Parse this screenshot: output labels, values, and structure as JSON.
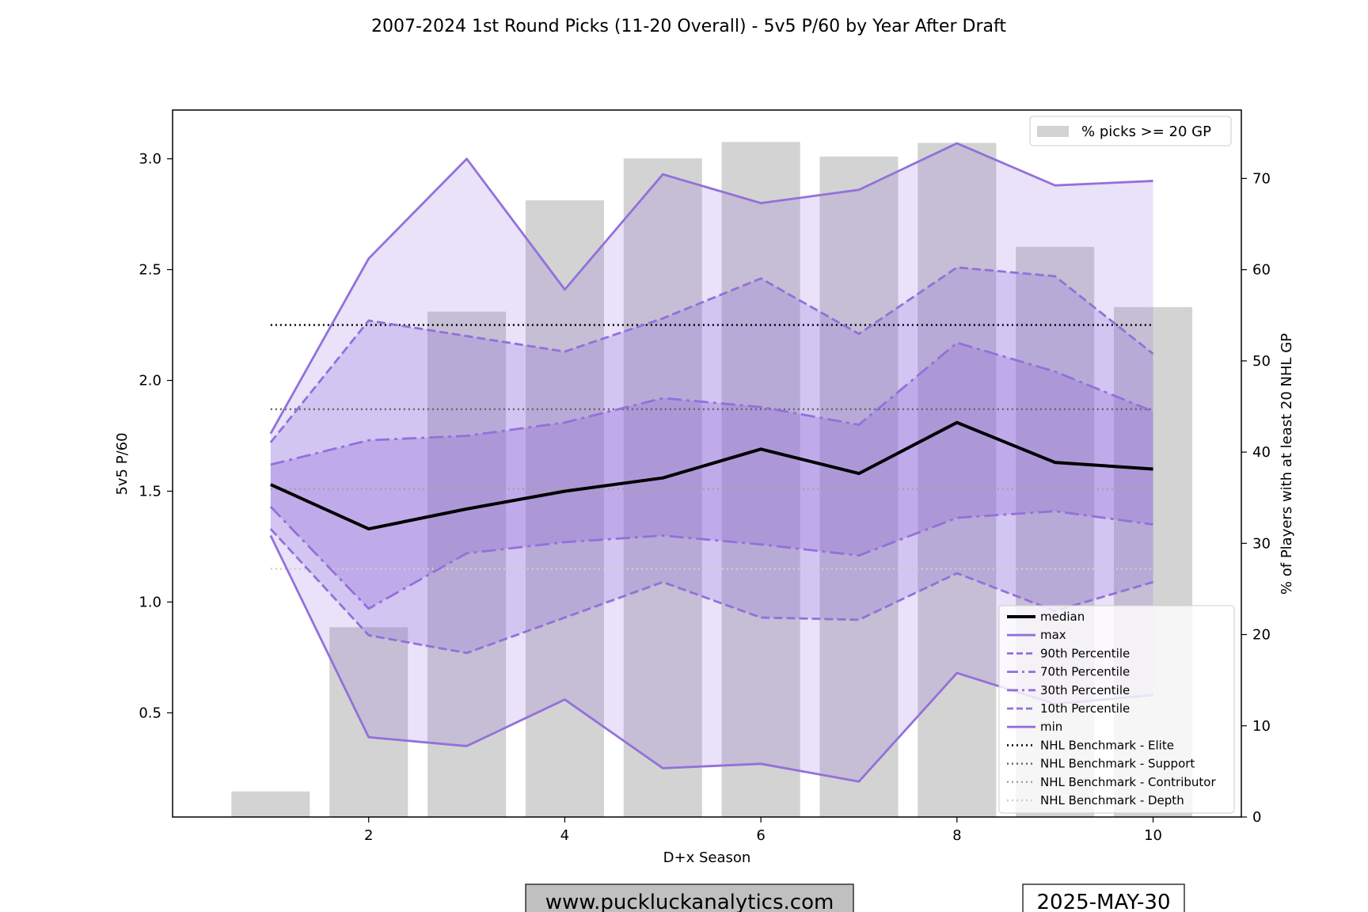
{
  "chart_data": {
    "type": "line",
    "title": "2007-2024 1st Round Picks (11-20 Overall) - 5v5 P/60 by Year After Draft",
    "xlabel": "D+x Season",
    "ylabel": "5v5 P/60",
    "ylabel_right": "% of Players with at least 20 NHL GP",
    "xlim": [
      0.0,
      10.9
    ],
    "ylim": [
      0.03,
      3.22
    ],
    "y2lim": [
      0,
      77.5
    ],
    "x_ticks": [
      2,
      4,
      6,
      8,
      10
    ],
    "y_ticks": [
      0.5,
      1.0,
      1.5,
      2.0,
      2.5,
      3.0
    ],
    "y2_ticks": [
      0,
      10,
      20,
      30,
      40,
      50,
      60,
      70
    ],
    "x": [
      1,
      2,
      3,
      4,
      5,
      6,
      7,
      8,
      9,
      10
    ],
    "bars": {
      "name": "% picks >= 20 GP",
      "color": "#d3d3d3",
      "values": [
        2.8,
        20.8,
        55.4,
        67.6,
        72.2,
        74.0,
        72.4,
        73.9,
        62.5,
        55.9
      ]
    },
    "series": [
      {
        "name": "median",
        "color": "#000000",
        "style": "solid",
        "width": 4,
        "values": [
          1.53,
          1.33,
          1.42,
          1.5,
          1.56,
          1.69,
          1.58,
          1.81,
          1.63,
          1.6
        ]
      },
      {
        "name": "max",
        "color": "#9370db",
        "style": "solid",
        "width": 2.8,
        "values": [
          1.76,
          2.55,
          3.0,
          2.41,
          2.93,
          2.8,
          2.86,
          3.07,
          2.88,
          2.9
        ]
      },
      {
        "name": "90th Percentile",
        "color": "#9370db",
        "style": "dashed",
        "width": 2.8,
        "values": [
          1.72,
          2.27,
          2.2,
          2.13,
          2.28,
          2.46,
          2.21,
          2.51,
          2.47,
          2.12
        ]
      },
      {
        "name": "70th Percentile",
        "color": "#9370db",
        "style": "dashdot",
        "width": 2.8,
        "values": [
          1.62,
          1.73,
          1.75,
          1.81,
          1.92,
          1.88,
          1.8,
          2.17,
          2.04,
          1.86
        ]
      },
      {
        "name": "30th Percentile",
        "color": "#9370db",
        "style": "dashdot",
        "width": 2.8,
        "values": [
          1.43,
          0.97,
          1.22,
          1.27,
          1.3,
          1.26,
          1.21,
          1.38,
          1.41,
          1.35
        ]
      },
      {
        "name": "10th Percentile",
        "color": "#9370db",
        "style": "dashed",
        "width": 2.8,
        "values": [
          1.33,
          0.85,
          0.77,
          0.93,
          1.09,
          0.93,
          0.92,
          1.13,
          0.96,
          1.09
        ]
      },
      {
        "name": "min",
        "color": "#9370db",
        "style": "solid",
        "width": 2.8,
        "values": [
          1.3,
          0.39,
          0.35,
          0.56,
          0.25,
          0.27,
          0.19,
          0.68,
          0.54,
          0.58
        ]
      }
    ],
    "bands": [
      {
        "lower": "min",
        "upper": "max",
        "color": "#9370db",
        "opacity": 0.2
      },
      {
        "lower": "10th Percentile",
        "upper": "90th Percentile",
        "color": "#9370db",
        "opacity": 0.25
      },
      {
        "lower": "30th Percentile",
        "upper": "70th Percentile",
        "color": "#9370db",
        "opacity": 0.3
      }
    ],
    "benchmarks": [
      {
        "name": "NHL Benchmark - Elite",
        "value": 2.25,
        "color": "#000000"
      },
      {
        "name": "NHL Benchmark - Support",
        "value": 1.87,
        "color": "#666666"
      },
      {
        "name": "NHL Benchmark - Contributor",
        "value": 1.51,
        "color": "#a3a3a3"
      },
      {
        "name": "NHL Benchmark - Depth",
        "value": 1.15,
        "color": "#cccccc"
      }
    ],
    "legend_bars_position": "top-right",
    "legend_lines_position": "lower-right",
    "grid": false
  },
  "footer": {
    "website": "www.puckluckanalytics.com",
    "date": "2025-MAY-30"
  }
}
